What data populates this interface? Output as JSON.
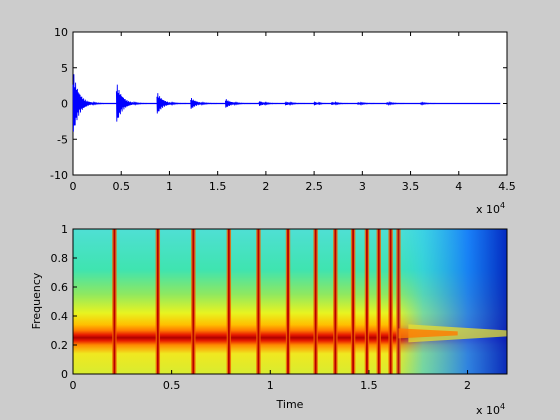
{
  "chart_data": [
    {
      "type": "line",
      "title": "",
      "xlabel": "",
      "ylabel": "",
      "xlim": [
        0,
        4.5
      ],
      "ylim": [
        -10,
        10
      ],
      "x_exponent_label": "x 10",
      "x_exponent_power": "4",
      "xticks": [
        "0",
        "0.5",
        "1",
        "1.5",
        "2",
        "2.5",
        "3",
        "3.5",
        "4",
        "4.5"
      ],
      "yticks": [
        "10",
        "5",
        "0",
        "-5",
        "-10"
      ],
      "line_color": "#0000ff",
      "decay_onsets": [
        {
          "x": 0.0,
          "peak": 4.8
        },
        {
          "x": 0.45,
          "peak": 3.1
        },
        {
          "x": 0.87,
          "peak": 1.7
        },
        {
          "x": 1.22,
          "peak": 0.9
        },
        {
          "x": 1.58,
          "peak": 0.7
        },
        {
          "x": 1.93,
          "peak": 0.4
        },
        {
          "x": 2.2,
          "peak": 0.3
        },
        {
          "x": 2.5,
          "peak": 0.3
        },
        {
          "x": 2.68,
          "peak": 0.25
        },
        {
          "x": 2.95,
          "peak": 0.2
        },
        {
          "x": 3.25,
          "peak": 0.2
        },
        {
          "x": 3.6,
          "peak": 0.15
        }
      ]
    },
    {
      "type": "heatmap",
      "title": "",
      "xlabel": "Time",
      "ylabel": "Frequency",
      "xlim": [
        0,
        2.2
      ],
      "ylim": [
        0,
        1
      ],
      "x_exponent_label": "x 10",
      "x_exponent_power": "4",
      "xticks": [
        "0",
        "0.5",
        "1",
        "1.5",
        "2"
      ],
      "yticks": [
        "1",
        "0.8",
        "0.6",
        "0.4",
        "0.2",
        "0"
      ],
      "colormap": "jet",
      "dominant_band_center": 0.28,
      "onset_times": [
        0.21,
        0.43,
        0.61,
        0.79,
        0.94,
        1.09,
        1.23,
        1.33,
        1.42,
        1.49,
        1.55,
        1.61,
        1.65
      ]
    }
  ]
}
